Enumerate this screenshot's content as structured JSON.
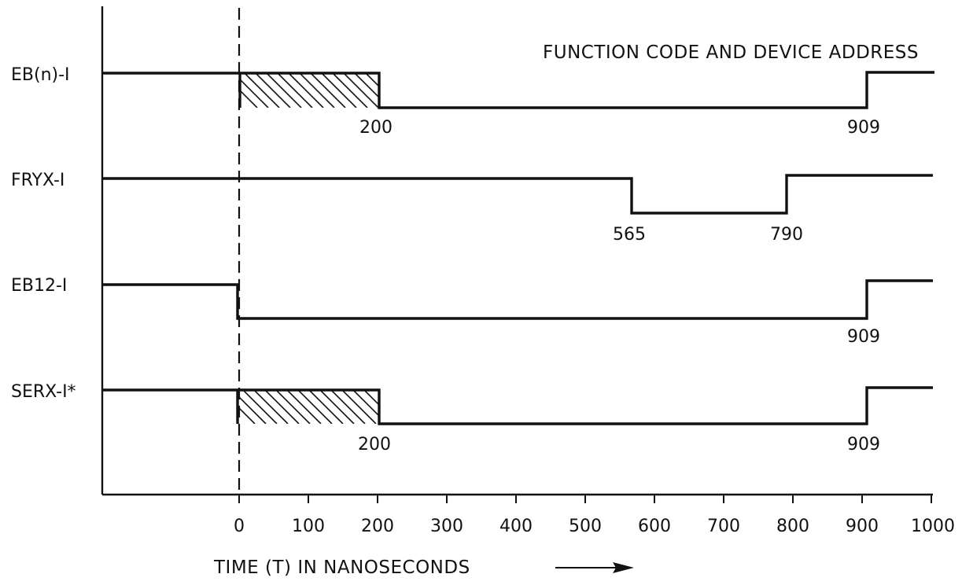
{
  "title": "FUNCTION CODE AND DEVICE ADDRESS",
  "x_axis": {
    "title": "TIME (T) IN NANOSECONDS",
    "arrow": "right-arrow",
    "min": 0,
    "max": 1000,
    "ticks": [
      "0",
      "100",
      "200",
      "300",
      "400",
      "500",
      "600",
      "700",
      "800",
      "900",
      "1000"
    ]
  },
  "reference_line": {
    "time": 0,
    "style": "dashed"
  },
  "signals": [
    {
      "name": "EB(n)-I",
      "segments": [
        {
          "from": "start",
          "to": 0,
          "level": "high"
        },
        {
          "from": 0,
          "to": 200,
          "level": "transition",
          "hatched": true
        },
        {
          "from": 200,
          "to": 909,
          "level": "low"
        },
        {
          "from": 909,
          "to": 1000,
          "level": "high"
        }
      ],
      "annotations": [
        "200",
        "909"
      ]
    },
    {
      "name": "FRYX-I",
      "segments": [
        {
          "from": "start",
          "to": 565,
          "level": "high"
        },
        {
          "from": 565,
          "to": 790,
          "level": "low"
        },
        {
          "from": 790,
          "to": 1000,
          "level": "high"
        }
      ],
      "annotations": [
        "565",
        "790"
      ]
    },
    {
      "name": "EB12-I",
      "segments": [
        {
          "from": "start",
          "to": 0,
          "level": "high"
        },
        {
          "from": 0,
          "to": 909,
          "level": "low"
        },
        {
          "from": 909,
          "to": 1000,
          "level": "high"
        }
      ],
      "annotations": [
        "909"
      ]
    },
    {
      "name": "SERX-I*",
      "segments": [
        {
          "from": "start",
          "to": 0,
          "level": "high"
        },
        {
          "from": 0,
          "to": 200,
          "level": "transition",
          "hatched": true
        },
        {
          "from": 200,
          "to": 909,
          "level": "low"
        },
        {
          "from": 909,
          "to": 1000,
          "level": "high"
        }
      ],
      "annotations": [
        "200",
        "909"
      ]
    }
  ]
}
